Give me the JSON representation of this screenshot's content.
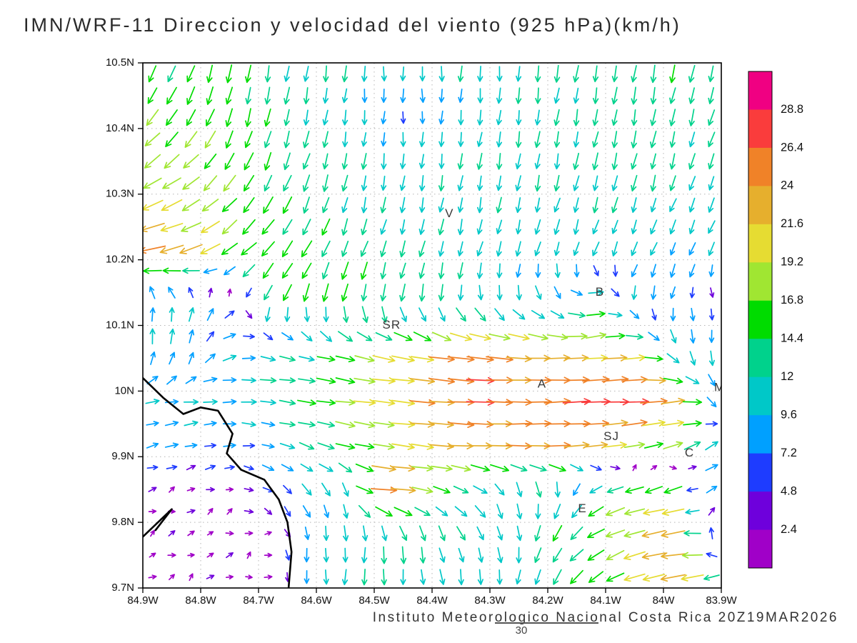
{
  "title": "IMN/WRF-11 Direccion y velocidad del viento (925 hPa)(km/h)",
  "caption": "Instituto Meteorologico Nacional Costa Rica 20Z19MAR2026",
  "forecast_hour": "30",
  "chart_data": {
    "type": "vector_field",
    "title": "IMN/WRF-11 Direccion y velocidad del viento (925 hPa)(km/h)",
    "units": "km/h",
    "level": "925 hPa",
    "grid_on": true,
    "extent": {
      "lon_min": -84.9,
      "lon_max": -83.9,
      "lat_min": 9.7,
      "lat_max": 10.5
    },
    "x_axis": {
      "labels": [
        "84.9W",
        "84.8W",
        "84.7W",
        "84.6W",
        "84.5W",
        "84.4W",
        "84.3W",
        "84.2W",
        "84.1W",
        "84W",
        "83.9W"
      ],
      "values": [
        -84.9,
        -84.8,
        -84.7,
        -84.6,
        -84.5,
        -84.4,
        -84.3,
        -84.2,
        -84.1,
        -84.0,
        -83.9
      ]
    },
    "y_axis": {
      "labels": [
        "10.5N",
        "10.4N",
        "10.3N",
        "10.2N",
        "10.1N",
        "10N",
        "9.9N",
        "9.8N",
        "9.7N"
      ],
      "values": [
        10.5,
        10.4,
        10.3,
        10.2,
        10.1,
        10.0,
        9.9,
        9.8,
        9.7
      ]
    },
    "colorbar": {
      "unit": "km/h",
      "levels": [
        2.4,
        4.8,
        7.2,
        9.6,
        12,
        14.4,
        16.8,
        19.2,
        21.6,
        24,
        26.4,
        28.8
      ],
      "labels_top_to_bottom": [
        "28.8",
        "26.4",
        "24",
        "21.6",
        "19.2",
        "16.8",
        "14.4",
        "12",
        "9.6",
        "7.2",
        "4.8",
        "2.4"
      ],
      "colors_low_to_high": [
        "#a000c8",
        "#6e00dc",
        "#1e3cff",
        "#00a0ff",
        "#00c8c8",
        "#00d28c",
        "#00dc00",
        "#a0e632",
        "#e6dc32",
        "#e6af2d",
        "#f08228",
        "#fa3c3c",
        "#f00082"
      ]
    },
    "stations": [
      {
        "label": "V",
        "lon": -84.37,
        "lat": 10.27
      },
      {
        "label": "B",
        "lon": -84.11,
        "lat": 10.15
      },
      {
        "label": "SR",
        "lon": -84.47,
        "lat": 10.1
      },
      {
        "label": "A",
        "lon": -84.21,
        "lat": 10.01
      },
      {
        "label": "SJ",
        "lon": -84.09,
        "lat": 9.93
      },
      {
        "label": "C",
        "lon": -83.955,
        "lat": 9.905
      },
      {
        "label": "E",
        "lon": -84.14,
        "lat": 9.82
      },
      {
        "label": "M",
        "lon": -83.903,
        "lat": 10.005
      }
    ],
    "coastline": [
      [
        -84.9,
        10.02
      ],
      [
        -84.865,
        9.99
      ],
      [
        -84.83,
        9.965
      ],
      [
        -84.8,
        9.975
      ],
      [
        -84.77,
        9.97
      ],
      [
        -84.745,
        9.935
      ],
      [
        -84.755,
        9.905
      ],
      [
        -84.73,
        9.88
      ],
      [
        -84.69,
        9.865
      ],
      [
        -84.665,
        9.835
      ],
      [
        -84.65,
        9.8
      ],
      [
        -84.643,
        9.755
      ],
      [
        -84.648,
        9.7
      ]
    ],
    "coastline_spur": [
      [
        -84.9,
        9.778
      ],
      [
        -84.85,
        9.82
      ],
      [
        -84.878,
        9.788
      ]
    ],
    "wind_grid": {
      "description": "Coarse sampled wind field, components [u_east, v_north] in km/h, rows from lat 10.5 (top) to 9.7 (bottom), cols from lon -84.9 (left) to -83.9 (right)",
      "ncols": 15,
      "nrows": 12,
      "uv": [
        [
          [
            -6,
            -13
          ],
          [
            -5,
            -14
          ],
          [
            -3,
            -14
          ],
          [
            -2,
            -13
          ],
          [
            -2,
            -12
          ],
          [
            -1,
            -12
          ],
          [
            0,
            -12
          ],
          [
            0,
            -11
          ],
          [
            -1,
            -12
          ],
          [
            0,
            -12
          ],
          [
            -2,
            -13
          ],
          [
            -2,
            -13
          ],
          [
            -2,
            -14
          ],
          [
            -3,
            -14
          ],
          [
            -3,
            -13
          ]
        ],
        [
          [
            -9,
            -13
          ],
          [
            -8,
            -14
          ],
          [
            -4,
            -15
          ],
          [
            -3,
            -14
          ],
          [
            -2,
            -12
          ],
          [
            -1,
            -10
          ],
          [
            0,
            -7
          ],
          [
            0,
            -8
          ],
          [
            -1,
            -10
          ],
          [
            -1,
            -11
          ],
          [
            -2,
            -12
          ],
          [
            -2,
            -12
          ],
          [
            -2,
            -13
          ],
          [
            -3,
            -13
          ],
          [
            -4,
            -12
          ]
        ],
        [
          [
            -14,
            -11
          ],
          [
            -13,
            -12
          ],
          [
            -8,
            -14
          ],
          [
            -5,
            -14
          ],
          [
            -4,
            -13
          ],
          [
            -2,
            -12
          ],
          [
            -1,
            -11
          ],
          [
            -1,
            -11
          ],
          [
            -2,
            -12
          ],
          [
            -2,
            -12
          ],
          [
            -2,
            -12
          ],
          [
            -3,
            -13
          ],
          [
            -3,
            -13
          ],
          [
            -3,
            -12
          ],
          [
            -4,
            -11
          ]
        ],
        [
          [
            -20,
            -8
          ],
          [
            -17,
            -9
          ],
          [
            -12,
            -12
          ],
          [
            -8,
            -13
          ],
          [
            -5,
            -13
          ],
          [
            -3,
            -12
          ],
          [
            -2,
            -11
          ],
          [
            -2,
            -11
          ],
          [
            -2,
            -11
          ],
          [
            -2,
            -11
          ],
          [
            -3,
            -11
          ],
          [
            -3,
            -11
          ],
          [
            -3,
            -11
          ],
          [
            -4,
            -10
          ],
          [
            -4,
            -10
          ]
        ],
        [
          [
            -26,
            -5
          ],
          [
            -22,
            -6
          ],
          [
            -15,
            -10
          ],
          [
            -11,
            -12
          ],
          [
            -8,
            -13
          ],
          [
            -5,
            -13
          ],
          [
            -4,
            -12
          ],
          [
            -3,
            -12
          ],
          [
            -3,
            -11
          ],
          [
            -3,
            -10
          ],
          [
            -3,
            -10
          ],
          [
            -4,
            -10
          ],
          [
            -4,
            -9
          ],
          [
            -4,
            -9
          ],
          [
            -3,
            -9
          ]
        ],
        [
          [
            1,
            10
          ],
          [
            1,
            10
          ],
          [
            6,
            6
          ],
          [
            -6,
            -12
          ],
          [
            -4,
            -14
          ],
          [
            -3,
            -15
          ],
          [
            -2,
            -14
          ],
          [
            -2,
            -13
          ],
          [
            1,
            -12
          ],
          [
            2,
            -10
          ],
          [
            6,
            -8
          ],
          [
            14,
            3
          ],
          [
            -2,
            -10
          ],
          [
            -1,
            -7
          ],
          [
            2,
            -3
          ]
        ],
        [
          [
            1,
            11
          ],
          [
            1,
            10
          ],
          [
            8,
            4
          ],
          [
            10,
            -2
          ],
          [
            12,
            -3
          ],
          [
            16,
            -5
          ],
          [
            20,
            -4
          ],
          [
            22,
            -4
          ],
          [
            27,
            -3
          ],
          [
            24,
            -2
          ],
          [
            22,
            0
          ],
          [
            20,
            2
          ],
          [
            18,
            2
          ],
          [
            2,
            -12
          ],
          [
            0,
            -10
          ]
        ],
        [
          [
            9,
            2
          ],
          [
            10,
            1
          ],
          [
            10,
            0
          ],
          [
            12,
            -1
          ],
          [
            15,
            -2
          ],
          [
            18,
            -2
          ],
          [
            21,
            -2
          ],
          [
            24,
            -2
          ],
          [
            27,
            -1
          ],
          [
            25,
            0
          ],
          [
            26,
            1
          ],
          [
            28,
            1
          ],
          [
            29,
            1
          ],
          [
            22,
            2
          ],
          [
            0,
            -10
          ]
        ],
        [
          [
            8,
            2
          ],
          [
            8,
            2
          ],
          [
            7,
            1
          ],
          [
            8,
            -2
          ],
          [
            12,
            -4
          ],
          [
            16,
            -4
          ],
          [
            19,
            -3
          ],
          [
            22,
            -2
          ],
          [
            23,
            -1
          ],
          [
            24,
            0
          ],
          [
            25,
            1
          ],
          [
            23,
            2
          ],
          [
            18,
            4
          ],
          [
            16,
            5
          ],
          [
            8,
            6
          ]
        ],
        [
          [
            1.8,
            0.7
          ],
          [
            1.8,
            0.8
          ],
          [
            1.6,
            1.0
          ],
          [
            5,
            -3
          ],
          [
            6,
            -8
          ],
          [
            4,
            -10
          ],
          [
            29,
            -1
          ],
          [
            14,
            -4
          ],
          [
            10,
            -6
          ],
          [
            3,
            -11
          ],
          [
            0,
            -12
          ],
          [
            -12,
            -6
          ],
          [
            -18,
            -4
          ],
          [
            -16,
            -6
          ],
          [
            12,
            6
          ]
        ],
        [
          [
            1.6,
            0.7
          ],
          [
            1.5,
            0.9
          ],
          [
            1.5,
            0.8
          ],
          [
            1.4,
            0.6
          ],
          [
            1,
            -9
          ],
          [
            0,
            -11
          ],
          [
            0,
            -14
          ],
          [
            3,
            -12
          ],
          [
            5,
            -10
          ],
          [
            2,
            -11
          ],
          [
            -8,
            -12
          ],
          [
            -14,
            -8
          ],
          [
            -20,
            -5
          ],
          [
            -24,
            -3
          ],
          [
            6,
            9
          ]
        ],
        [
          [
            1.5,
            0.9
          ],
          [
            1.4,
            0.7
          ],
          [
            1.7,
            0.8
          ],
          [
            1.4,
            0.7
          ],
          [
            0,
            -10
          ],
          [
            -1,
            -11
          ],
          [
            0,
            -12
          ],
          [
            2,
            -11
          ],
          [
            0,
            -11
          ],
          [
            -2,
            -11
          ],
          [
            -6,
            -11
          ],
          [
            -12,
            -9
          ],
          [
            -18,
            -6
          ],
          [
            -24,
            -3
          ],
          [
            -14,
            -7
          ]
        ]
      ]
    },
    "display": {
      "arrow_cols": 30,
      "arrow_rows": 24
    }
  }
}
